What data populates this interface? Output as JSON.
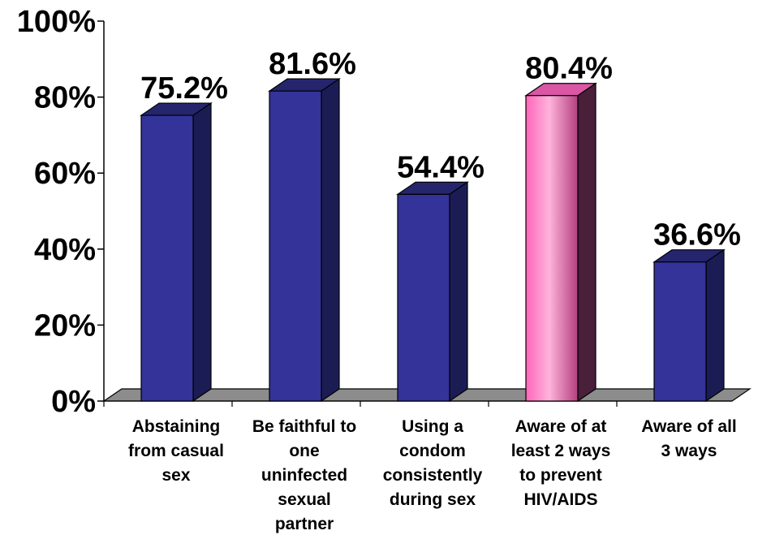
{
  "chart_data": {
    "type": "bar",
    "categories": [
      [
        "Abstaining",
        "from casual",
        "sex"
      ],
      [
        "Be faithful to",
        "one",
        "uninfected",
        "sexual",
        "partner"
      ],
      [
        "Using a",
        "condom",
        "consistently",
        "during sex"
      ],
      [
        "Aware of at",
        "least 2 ways",
        "to prevent",
        "HIV/AIDS"
      ],
      [
        "Aware of all",
        "3 ways"
      ]
    ],
    "values": [
      75.2,
      81.6,
      54.4,
      80.4,
      36.6
    ],
    "data_labels": [
      "75.2%",
      "81.6%",
      "54.4%",
      "80.4%",
      "36.6%"
    ],
    "y_ticks": [
      "0%",
      "20%",
      "40%",
      "60%",
      "80%",
      "100%"
    ],
    "ylim": [
      0,
      100
    ],
    "grid": false,
    "legend": "none",
    "highlight_index": 3,
    "colors": {
      "bar_front": "#333399",
      "bar_side": "#1c1c55",
      "bar_top": "#25256e",
      "highlight_light": "#ffb3dc",
      "highlight_mid": "#ff66bb",
      "highlight_dark": "#b33f7f",
      "highlight_side": "#4a1f3a",
      "highlight_top": "#d957a5",
      "floor": "#8c8c8c"
    }
  }
}
